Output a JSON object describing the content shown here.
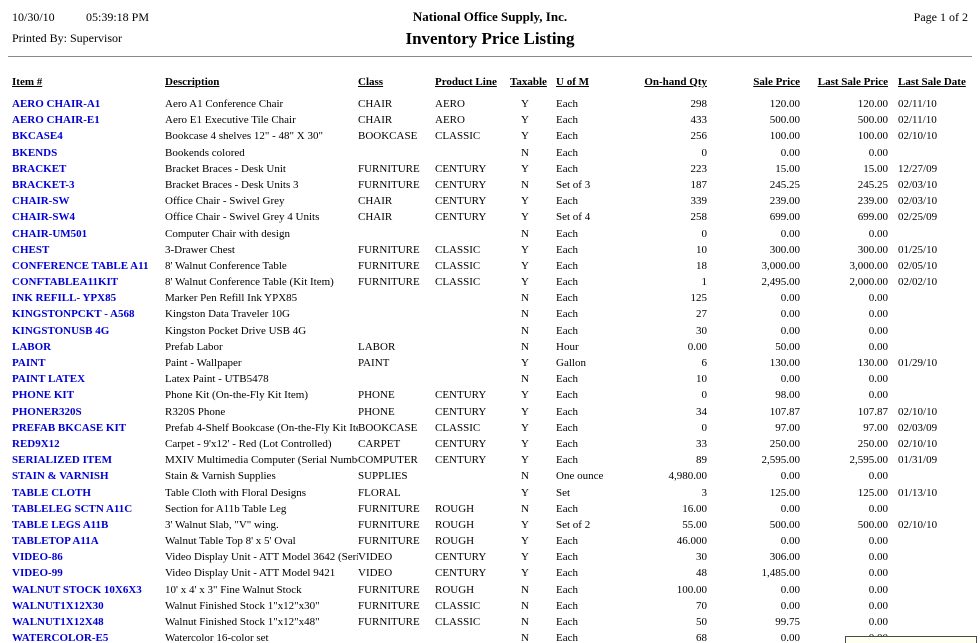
{
  "page_header": {
    "date": "10/30/10",
    "time": "05:39:18 PM",
    "printed_by": "Printed By: Supervisor",
    "company": "National Office Supply, Inc.",
    "report_title": "Inventory Price Listing",
    "page_info": "Page 1 of 2"
  },
  "colors": {
    "item_link": "#0000d6",
    "text": "#000000",
    "separator": "#8a8a8a",
    "popup_fill": "#fffff0"
  },
  "table": {
    "columns": [
      "Item #",
      "Description",
      "Class",
      "Product Line",
      "Taxable",
      "U of M",
      "On-hand Qty",
      "Sale Price",
      "Last Sale Price",
      "Last Sale Date"
    ],
    "rows": [
      [
        "AERO CHAIR-A1",
        "Aero A1 Conference Chair",
        "CHAIR",
        "AERO",
        "Y",
        "Each",
        "298",
        "120.00",
        "120.00",
        "02/11/10"
      ],
      [
        "AERO CHAIR-E1",
        "Aero E1 Executive Tile Chair",
        "CHAIR",
        "AERO",
        "Y",
        "Each",
        "433",
        "500.00",
        "500.00",
        "02/11/10"
      ],
      [
        "BKCASE4",
        "Bookcase 4 shelves 12\" - 48\" X 30\"",
        "BOOKCASE",
        "CLASSIC",
        "Y",
        "Each",
        "256",
        "100.00",
        "100.00",
        "02/10/10"
      ],
      [
        "BKENDS",
        "Bookends colored",
        "",
        "",
        "N",
        "Each",
        "0",
        "0.00",
        "0.00",
        ""
      ],
      [
        "BRACKET",
        "Bracket Braces - Desk Unit",
        "FURNITURE",
        "CENTURY",
        "Y",
        "Each",
        "223",
        "15.00",
        "15.00",
        "12/27/09"
      ],
      [
        "BRACKET-3",
        "Bracket Braces - Desk Units 3",
        "FURNITURE",
        "CENTURY",
        "N",
        "Set of 3",
        "187",
        "245.25",
        "245.25",
        "02/03/10"
      ],
      [
        "CHAIR-SW",
        "Office Chair - Swivel Grey",
        "CHAIR",
        "CENTURY",
        "Y",
        "Each",
        "339",
        "239.00",
        "239.00",
        "02/03/10"
      ],
      [
        "CHAIR-SW4",
        "Office Chair - Swivel Grey 4 Units",
        "CHAIR",
        "CENTURY",
        "Y",
        "Set of 4",
        "258",
        "699.00",
        "699.00",
        "02/25/09"
      ],
      [
        "CHAIR-UM501",
        "Computer Chair with design",
        "",
        "",
        "N",
        "Each",
        "0",
        "0.00",
        "0.00",
        ""
      ],
      [
        "CHEST",
        "3-Drawer Chest",
        "FURNITURE",
        "CLASSIC",
        "Y",
        "Each",
        "10",
        "300.00",
        "300.00",
        "01/25/10"
      ],
      [
        "CONFERENCE TABLE A11",
        "8' Walnut Conference Table",
        "FURNITURE",
        "CLASSIC",
        "Y",
        "Each",
        "18",
        "3,000.00",
        "3,000.00",
        "02/05/10"
      ],
      [
        "CONFTABLEA11KIT",
        "8' Walnut Conference Table (Kit Item)",
        "FURNITURE",
        "CLASSIC",
        "Y",
        "Each",
        "1",
        "2,495.00",
        "2,000.00",
        "02/02/10"
      ],
      [
        "INK REFILL- YPX85",
        "Marker Pen Refill Ink YPX85",
        "",
        "",
        "N",
        "Each",
        "125",
        "0.00",
        "0.00",
        ""
      ],
      [
        "KINGSTONPCKT - A568",
        "Kingston Data Traveler 10G",
        "",
        "",
        "N",
        "Each",
        "27",
        "0.00",
        "0.00",
        ""
      ],
      [
        "KINGSTONUSB 4G",
        "Kingston Pocket Drive USB 4G",
        "",
        "",
        "N",
        "Each",
        "30",
        "0.00",
        "0.00",
        ""
      ],
      [
        "LABOR",
        "Prefab Labor",
        "LABOR",
        "",
        "N",
        "Hour",
        "0.00",
        "50.00",
        "0.00",
        ""
      ],
      [
        "PAINT",
        "Paint - Wallpaper",
        "PAINT",
        "",
        "Y",
        "Gallon",
        "6",
        "130.00",
        "130.00",
        "01/29/10"
      ],
      [
        "PAINT LATEX",
        "Latex Paint - UTB5478",
        "",
        "",
        "N",
        "Each",
        "10",
        "0.00",
        "0.00",
        ""
      ],
      [
        "PHONE KIT",
        "Phone Kit (On-the-Fly Kit Item)",
        "PHONE",
        "CENTURY",
        "Y",
        "Each",
        "0",
        "98.00",
        "0.00",
        ""
      ],
      [
        "PHONER320S",
        "R320S Phone",
        "PHONE",
        "CENTURY",
        "Y",
        "Each",
        "34",
        "107.87",
        "107.87",
        "02/10/10"
      ],
      [
        "PREFAB BKCASE KIT",
        "Prefab 4-Shelf Bookcase (On-the-Fly Kit Item)",
        "BOOKCASE",
        "CLASSIC",
        "Y",
        "Each",
        "0",
        "97.00",
        "97.00",
        "02/03/09"
      ],
      [
        "RED9X12",
        "Carpet - 9'x12' - Red (Lot Controlled)",
        "CARPET",
        "CENTURY",
        "Y",
        "Each",
        "33",
        "250.00",
        "250.00",
        "02/10/10"
      ],
      [
        "SERIALIZED ITEM",
        "MXIV Multimedia Computer (Serial Number)",
        "COMPUTER",
        "CENTURY",
        "Y",
        "Each",
        "89",
        "2,595.00",
        "2,595.00",
        "01/31/09"
      ],
      [
        "STAIN & VARNISH",
        "Stain & Varnish Supplies",
        "SUPPLIES",
        "",
        "N",
        "One ounce",
        "4,980.00",
        "0.00",
        "0.00",
        ""
      ],
      [
        "TABLE CLOTH",
        "Table Cloth with Floral Designs",
        "FLORAL",
        "",
        "Y",
        "Set",
        "3",
        "125.00",
        "125.00",
        "01/13/10"
      ],
      [
        "TABLELEG SCTN A11C",
        "Section for A11b Table Leg",
        "FURNITURE",
        "ROUGH",
        "N",
        "Each",
        "16.00",
        "0.00",
        "0.00",
        ""
      ],
      [
        "TABLE LEGS A11B",
        "3' Walnut Slab, \"V\" wing.",
        "FURNITURE",
        "ROUGH",
        "Y",
        "Set of 2",
        "55.00",
        "500.00",
        "500.00",
        "02/10/10"
      ],
      [
        "TABLETOP A11A",
        "Walnut Table Top 8' x 5' Oval",
        "FURNITURE",
        "ROUGH",
        "Y",
        "Each",
        "46.000",
        "0.00",
        "0.00",
        ""
      ],
      [
        "VIDEO-86",
        "Video Display Unit - ATT Model 3642 (Serial)",
        "VIDEO",
        "CENTURY",
        "Y",
        "Each",
        "30",
        "306.00",
        "0.00",
        ""
      ],
      [
        "VIDEO-99",
        "Video Display Unit - ATT Model 9421",
        "VIDEO",
        "CENTURY",
        "Y",
        "Each",
        "48",
        "1,485.00",
        "0.00",
        ""
      ],
      [
        "WALNUT STOCK 10X6X3",
        "10' x 4' x 3\" Fine Walnut Stock",
        "FURNITURE",
        "ROUGH",
        "N",
        "Each",
        "100.00",
        "0.00",
        "0.00",
        ""
      ],
      [
        "WALNUT1X12X30",
        "Walnut Finished Stock 1\"x12\"x30\"",
        "FURNITURE",
        "CLASSIC",
        "N",
        "Each",
        "70",
        "0.00",
        "0.00",
        ""
      ],
      [
        "WALNUT1X12X48",
        "Walnut Finished Stock 1\"x12\"x48\"",
        "FURNITURE",
        "CLASSIC",
        "N",
        "Each",
        "50",
        "99.75",
        "0.00",
        ""
      ],
      [
        "WATERCOLOR-E5",
        "Watercolor 16-color set",
        "",
        "",
        "N",
        "Each",
        "68",
        "0.00",
        "0.00",
        ""
      ]
    ]
  }
}
